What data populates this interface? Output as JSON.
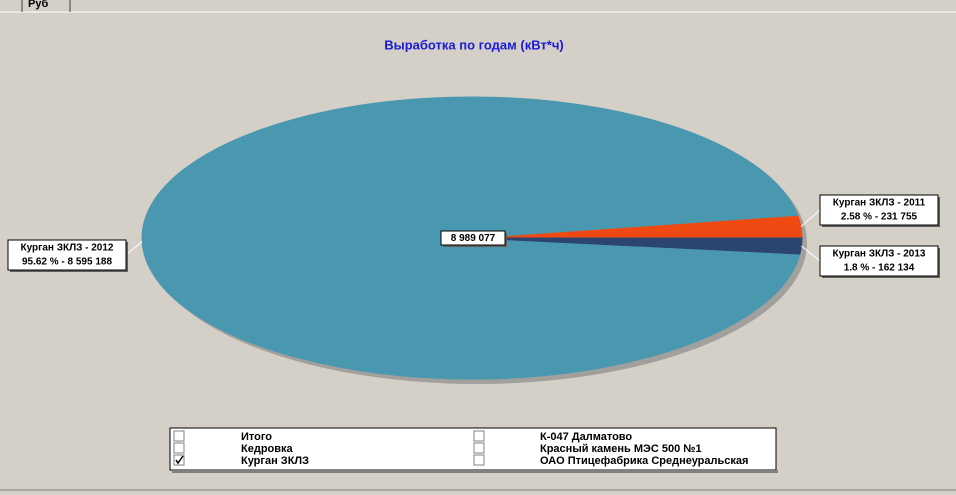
{
  "tab": "Руб",
  "chart_data": {
    "type": "pie",
    "title": "Выработка  по годам (кВт*ч)",
    "categories": [
      "Курган ЗКЛЗ - 2011",
      "Курган ЗКЛЗ - 2012",
      "Курган ЗКЛЗ - 2013"
    ],
    "values": [
      231755,
      8595188,
      162134
    ],
    "value_labels": [
      "2.58 % - 231 755",
      "95.62 % - 8 595 188",
      "1.8 % - 162 134"
    ],
    "colors": [
      "#f04a12",
      "#4a98b0",
      "#2b4470"
    ],
    "total": 8989077,
    "total_label": "8 989 077"
  },
  "legend": [
    {
      "label": "Итого",
      "checked": false
    },
    {
      "label": "Кедровка",
      "checked": false
    },
    {
      "label": "Курган ЗКЛЗ",
      "checked": true
    },
    {
      "label": "К-047 Далматово",
      "checked": false
    },
    {
      "label": "Красный камень МЭС 500 №1",
      "checked": false
    },
    {
      "label": "ОАО  Птицефабрика Среднеуральская",
      "checked": false
    }
  ]
}
